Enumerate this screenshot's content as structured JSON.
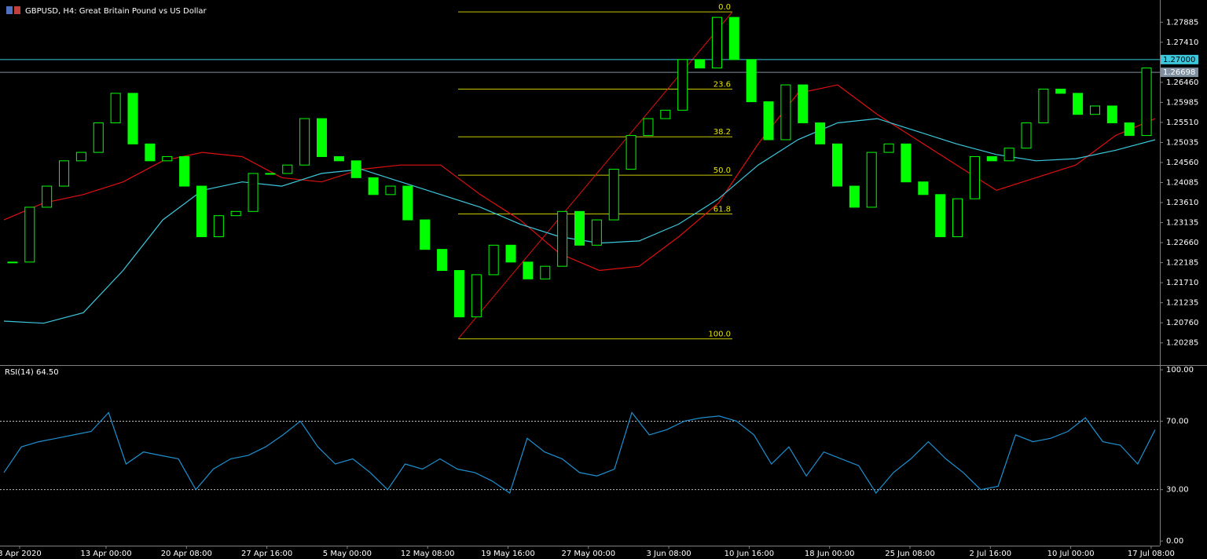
{
  "chart_data": [
    {
      "type": "candlestick",
      "title": "GBPUSD, H4:  Great Britain Pound vs US Dollar",
      "close": [
        1.222,
        1.235,
        1.24,
        1.246,
        1.248,
        1.255,
        1.262,
        1.25,
        1.246,
        1.247,
        1.24,
        1.228,
        1.233,
        1.234,
        1.243,
        1.243,
        1.245,
        1.256,
        1.247,
        1.246,
        1.242,
        1.238,
        1.24,
        1.232,
        1.225,
        1.22,
        1.209,
        1.219,
        1.226,
        1.222,
        1.218,
        1.221,
        1.234,
        1.226,
        1.232,
        1.244,
        1.252,
        1.256,
        1.258,
        1.27,
        1.268,
        1.28,
        1.27,
        1.26,
        1.251,
        1.264,
        1.255,
        1.25,
        1.24,
        1.235,
        1.248,
        1.25,
        1.241,
        1.238,
        1.228,
        1.237,
        1.247,
        1.246,
        1.249,
        1.255,
        1.263,
        1.262,
        1.257,
        1.259,
        1.255,
        1.252,
        1.268
      ],
      "color": "#00ff00",
      "series": [
        {
          "color": "#e01010",
          "values": [
            1.232,
            1.236,
            1.238,
            1.241,
            1.246,
            1.248,
            1.247,
            1.242,
            1.241,
            1.244,
            1.245,
            1.245,
            1.238,
            1.232,
            1.224,
            1.22,
            1.221,
            1.228,
            1.236,
            1.25,
            1.262,
            1.264,
            1.257,
            1.251,
            1.245,
            1.239,
            1.242,
            1.245,
            1.252,
            1.256
          ]
        },
        {
          "color": "#3cc8dc",
          "values": [
            1.208,
            1.2075,
            1.21,
            1.22,
            1.232,
            1.239,
            1.241,
            1.24,
            1.243,
            1.244,
            1.241,
            1.238,
            1.235,
            1.231,
            1.228,
            1.2265,
            1.227,
            1.231,
            1.237,
            1.245,
            1.251,
            1.255,
            1.256,
            1.253,
            1.25,
            1.2475,
            1.246,
            1.2465,
            1.2485,
            1.251
          ]
        }
      ],
      "hlines": [
        {
          "value": 1.27,
          "label": "1.27000",
          "color": "#3cc8dc"
        },
        {
          "value": 1.26698,
          "label": "1.26698",
          "color": "#8090a0"
        }
      ],
      "fib": [
        {
          "label": "0.0",
          "price": 1.2813
        },
        {
          "label": "23.6",
          "price": 1.263
        },
        {
          "label": "38.2",
          "price": 1.2517
        },
        {
          "label": "50.0",
          "price": 1.2426
        },
        {
          "label": "61.8",
          "price": 1.2334
        },
        {
          "label": "100.0",
          "price": 1.2038
        }
      ],
      "ylim": [
        1.19758,
        1.28412
      ],
      "yticks": [
        1.27885,
        {
          "value": 1.2741,
          "label": "1.27410"
        },
        {
          "value": 1.2646,
          "label": "1.26460"
        },
        1.25985,
        {
          "value": 1.2551,
          "label": "1.25510"
        },
        1.25035,
        {
          "value": 1.2456,
          "label": "1.24560"
        },
        1.24085,
        {
          "value": 1.2361,
          "label": "1.23610"
        },
        1.23135,
        {
          "value": 1.2266,
          "label": "1.22660"
        },
        1.22185,
        {
          "value": 1.2171,
          "label": "1.21710"
        },
        1.21235,
        {
          "value": 1.2076,
          "label": "1.20760"
        },
        1.20285
      ],
      "x_labels": [
        "3 Apr 2020",
        "13 Apr 00:00",
        "20 Apr 08:00",
        "27 Apr 16:00",
        "5 May 00:00",
        "12 May 08:00",
        "19 May 16:00",
        "27 May 00:00",
        "3 Jun 08:00",
        "10 Jun 16:00",
        "18 Jun 00:00",
        "25 Jun 08:00",
        "2 Jul 16:00",
        "10 Jul 00:00",
        "17 Jul 08:00"
      ]
    },
    {
      "type": "line",
      "title": "RSI(14) 64.50",
      "series": [
        {
          "color": "#1e90d0",
          "values": [
            40,
            55,
            58,
            60,
            62,
            64,
            75,
            45,
            52,
            50,
            48,
            30,
            42,
            48,
            50,
            55,
            62,
            70,
            55,
            45,
            48,
            40,
            30,
            45,
            42,
            48,
            42,
            40,
            35,
            28,
            60,
            52,
            48,
            40,
            38,
            42,
            75,
            62,
            65,
            70,
            72,
            73,
            70,
            62,
            45,
            55,
            38,
            52,
            48,
            44,
            28,
            40,
            48,
            58,
            48,
            40,
            30,
            32,
            62,
            58,
            60,
            64,
            72,
            58,
            56,
            45,
            65
          ]
        }
      ],
      "ylim": [
        -2.7,
        102.3
      ],
      "yticks": [
        {
          "value": 100,
          "label": "100.00"
        },
        {
          "value": 70,
          "label": "70.00"
        },
        {
          "value": 30,
          "label": "30.00"
        },
        {
          "value": 0,
          "label": "0.00"
        }
      ]
    }
  ]
}
